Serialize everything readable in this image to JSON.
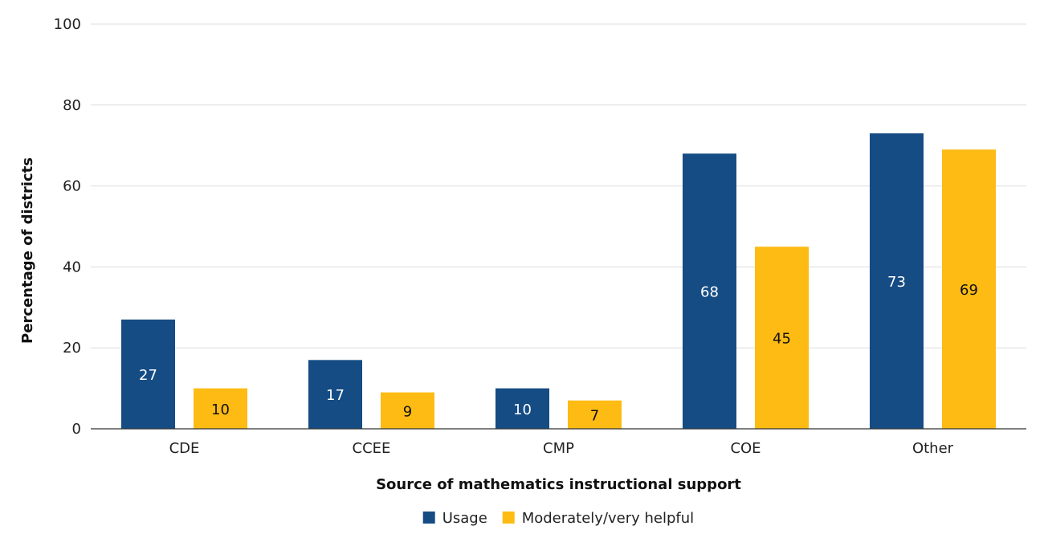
{
  "chart_data": {
    "type": "bar",
    "xlabel": "Source of mathematics instructional support",
    "ylabel": "Percentage of districts",
    "categories": [
      "CDE",
      "CCEE",
      "CMP",
      "COE",
      "Other"
    ],
    "series": [
      {
        "name": "Usage",
        "color": "#154c84",
        "label_color": "#ffffff",
        "values": [
          27,
          17,
          10,
          68,
          73
        ]
      },
      {
        "name": "Moderately/very helpful",
        "color": "#fdbb14",
        "label_color": "#111111",
        "values": [
          10,
          9,
          7,
          45,
          69
        ]
      }
    ],
    "ylim": [
      0,
      100
    ],
    "yticks": [
      0,
      20,
      40,
      60,
      80,
      100
    ],
    "grid": true,
    "legend_position": "bottom-center",
    "data_labels": true
  }
}
